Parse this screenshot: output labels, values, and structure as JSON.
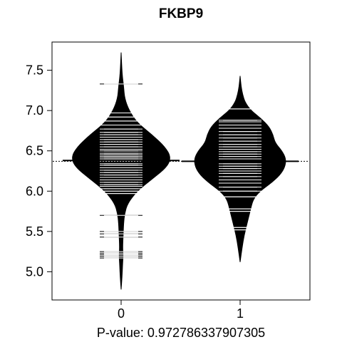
{
  "chart_data": {
    "type": "beanplot",
    "title": "FKBP9",
    "xlabel": "P-value: 0.972786337907305",
    "ylabel": "",
    "categories": [
      "0",
      "1"
    ],
    "xticks": [
      "0",
      "1"
    ],
    "yticks": [
      "5.0",
      "5.5",
      "6.0",
      "6.5",
      "7.0",
      "7.5"
    ],
    "ylim": [
      4.65,
      7.85
    ],
    "overall_mean": 6.37,
    "grid": false,
    "legend": "none",
    "colors": {
      "bean": "#000000",
      "lines": "#ffffff",
      "background": "#ffffff"
    },
    "series": [
      {
        "name": "0",
        "mean": 6.38,
        "density": [
          [
            4.78,
            0.0
          ],
          [
            4.95,
            0.02
          ],
          [
            5.1,
            0.03
          ],
          [
            5.2,
            0.04
          ],
          [
            5.3,
            0.03
          ],
          [
            5.45,
            0.04
          ],
          [
            5.6,
            0.05
          ],
          [
            5.72,
            0.07
          ],
          [
            5.85,
            0.13
          ],
          [
            6.0,
            0.32
          ],
          [
            6.15,
            0.62
          ],
          [
            6.3,
            0.92
          ],
          [
            6.42,
            1.0
          ],
          [
            6.55,
            0.88
          ],
          [
            6.7,
            0.62
          ],
          [
            6.85,
            0.32
          ],
          [
            7.0,
            0.16
          ],
          [
            7.15,
            0.07
          ],
          [
            7.3,
            0.05
          ],
          [
            7.45,
            0.02
          ],
          [
            7.72,
            0.0
          ]
        ],
        "points": [
          5.17,
          5.19,
          5.21,
          5.23,
          5.25,
          5.43,
          5.47,
          5.5,
          5.7,
          5.97,
          6.0,
          6.03,
          6.06,
          6.08,
          6.11,
          6.14,
          6.17,
          6.2,
          6.23,
          6.26,
          6.29,
          6.32,
          6.34,
          6.37,
          6.39,
          6.41,
          6.43,
          6.45,
          6.47,
          6.5,
          6.52,
          6.55,
          6.58,
          6.61,
          6.64,
          6.67,
          6.7,
          6.73,
          6.77,
          6.82,
          6.87,
          6.92,
          6.97,
          7.33
        ]
      },
      {
        "name": "1",
        "mean": 6.37,
        "density": [
          [
            5.12,
            0.0
          ],
          [
            5.3,
            0.04
          ],
          [
            5.45,
            0.08
          ],
          [
            5.6,
            0.14
          ],
          [
            5.75,
            0.2
          ],
          [
            5.9,
            0.26
          ],
          [
            6.0,
            0.4
          ],
          [
            6.1,
            0.62
          ],
          [
            6.2,
            0.8
          ],
          [
            6.3,
            0.9
          ],
          [
            6.4,
            0.92
          ],
          [
            6.5,
            0.84
          ],
          [
            6.6,
            0.7
          ],
          [
            6.7,
            0.66
          ],
          [
            6.8,
            0.58
          ],
          [
            6.9,
            0.42
          ],
          [
            7.0,
            0.22
          ],
          [
            7.1,
            0.1
          ],
          [
            7.2,
            0.05
          ],
          [
            7.3,
            0.02
          ],
          [
            7.43,
            0.0
          ]
        ],
        "points": [
          5.52,
          5.55,
          5.75,
          5.78,
          5.93,
          6.0,
          6.05,
          6.1,
          6.14,
          6.18,
          6.22,
          6.25,
          6.28,
          6.31,
          6.34,
          6.37,
          6.4,
          6.43,
          6.46,
          6.49,
          6.52,
          6.55,
          6.58,
          6.62,
          6.66,
          6.7,
          6.74,
          6.78,
          6.82,
          6.86,
          6.88,
          7.02
        ]
      }
    ]
  }
}
